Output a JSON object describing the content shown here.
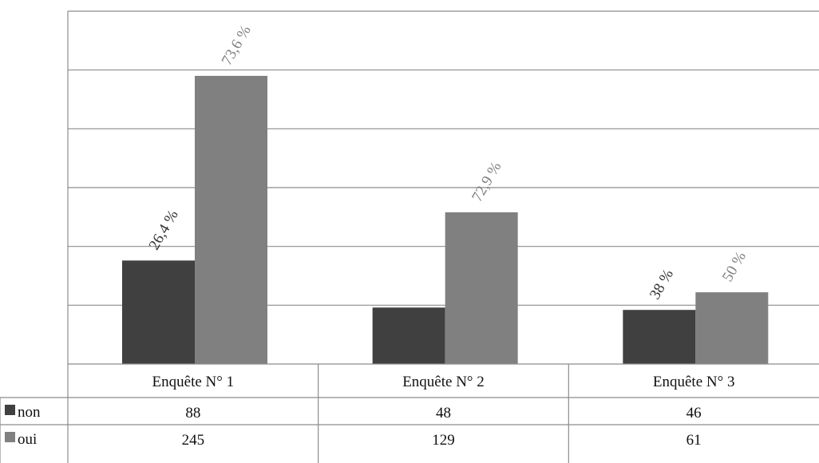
{
  "chart_data": {
    "type": "bar",
    "categories": [
      "Enquête N° 1",
      "Enquête N° 2",
      "Enquête N° 3"
    ],
    "series": [
      {
        "name": "non",
        "values": [
          88,
          48,
          46
        ],
        "color": "#404040",
        "data_labels": [
          "26,4 %",
          "",
          "38 %"
        ],
        "label_color": "#333333"
      },
      {
        "name": "oui",
        "values": [
          245,
          129,
          61
        ],
        "color": "#808080",
        "data_labels": [
          "73,6 %",
          "72,9 %",
          "50 %"
        ],
        "label_color": "#808080"
      }
    ],
    "ylim": [
      0,
      300
    ],
    "grid": true,
    "legend": "data-table"
  }
}
